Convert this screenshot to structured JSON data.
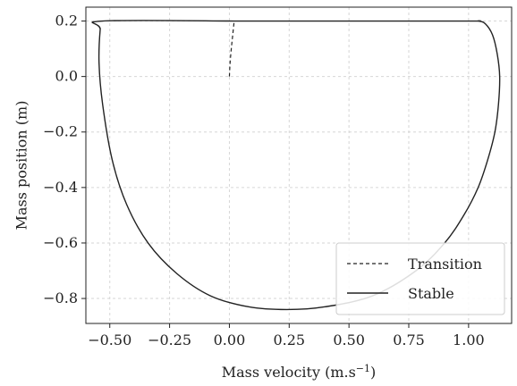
{
  "chart_data": {
    "type": "line",
    "xlabel": "Mass velocity (m.s",
    "xlabel_sup": "−1",
    "xlabel_close": ")",
    "ylabel": "Mass position (m)",
    "xlim": [
      -0.6,
      1.18
    ],
    "ylim": [
      -0.89,
      0.25
    ],
    "grid": true,
    "legend_placement": "bottom-right",
    "x_ticks": [
      -0.5,
      -0.25,
      0.0,
      0.25,
      0.5,
      0.75,
      1.0
    ],
    "x_tick_labels": [
      "−0.50",
      "−0.25",
      "0.00",
      "0.25",
      "0.50",
      "0.75",
      "1.00"
    ],
    "y_ticks": [
      0.2,
      0.0,
      -0.2,
      -0.4,
      -0.6,
      -0.8
    ],
    "y_tick_labels": [
      "0.2",
      "0.0",
      "−0.2",
      "−0.4",
      "−0.6",
      "−0.8"
    ],
    "series": [
      {
        "name": "Transition",
        "style": "dashed",
        "color": "#222222",
        "points": [
          [
            0.0,
            0.0
          ],
          [
            0.003,
            0.05
          ],
          [
            0.008,
            0.1
          ],
          [
            0.014,
            0.15
          ],
          [
            0.02,
            0.2
          ]
        ]
      },
      {
        "name": "Stable",
        "style": "solid",
        "color": "#222222",
        "points": [
          [
            0.02,
            0.2
          ],
          [
            0.5,
            0.2
          ],
          [
            1.0,
            0.2
          ],
          [
            1.04,
            0.2
          ],
          [
            1.07,
            0.19
          ],
          [
            1.1,
            0.15
          ],
          [
            1.12,
            0.08
          ],
          [
            1.13,
            0.0
          ],
          [
            1.125,
            -0.1
          ],
          [
            1.11,
            -0.2
          ],
          [
            1.08,
            -0.3
          ],
          [
            1.04,
            -0.4
          ],
          [
            0.98,
            -0.5
          ],
          [
            0.9,
            -0.6
          ],
          [
            0.78,
            -0.7
          ],
          [
            0.6,
            -0.79
          ],
          [
            0.4,
            -0.83
          ],
          [
            0.24,
            -0.84
          ],
          [
            0.08,
            -0.83
          ],
          [
            -0.08,
            -0.79
          ],
          [
            -0.22,
            -0.71
          ],
          [
            -0.34,
            -0.6
          ],
          [
            -0.43,
            -0.46
          ],
          [
            -0.49,
            -0.3
          ],
          [
            -0.53,
            -0.1
          ],
          [
            -0.545,
            0.05
          ],
          [
            -0.54,
            0.17
          ],
          [
            -0.53,
            0.2
          ],
          [
            0.02,
            0.2
          ]
        ]
      }
    ]
  }
}
